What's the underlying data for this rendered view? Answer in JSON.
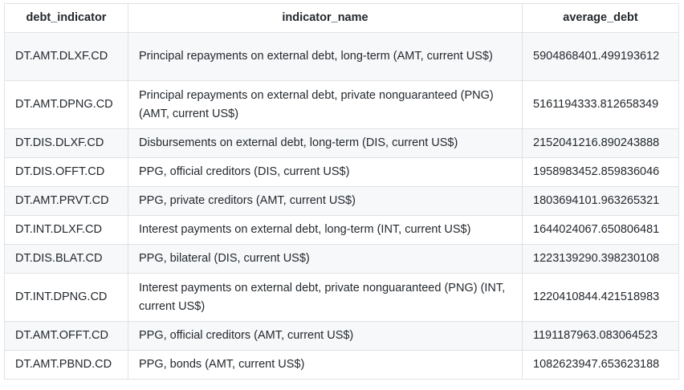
{
  "table": {
    "headers": [
      "debt_indicator",
      "indicator_name",
      "average_debt"
    ],
    "rows": [
      {
        "debt_indicator": "DT.AMT.DLXF.CD",
        "indicator_name": "Principal repayments on external debt, long-term (AMT, current US$)",
        "average_debt": "5904868401.499193612"
      },
      {
        "debt_indicator": "DT.AMT.DPNG.CD",
        "indicator_name": "Principal repayments on external debt, private nonguaranteed (PNG) (AMT, current US$)",
        "average_debt": "5161194333.812658349"
      },
      {
        "debt_indicator": "DT.DIS.DLXF.CD",
        "indicator_name": "Disbursements on external debt, long-term (DIS, current US$)",
        "average_debt": "2152041216.890243888"
      },
      {
        "debt_indicator": "DT.DIS.OFFT.CD",
        "indicator_name": "PPG, official creditors (DIS, current US$)",
        "average_debt": "1958983452.859836046"
      },
      {
        "debt_indicator": "DT.AMT.PRVT.CD",
        "indicator_name": "PPG, private creditors (AMT, current US$)",
        "average_debt": "1803694101.963265321"
      },
      {
        "debt_indicator": "DT.INT.DLXF.CD",
        "indicator_name": "Interest payments on external debt, long-term (INT, current US$)",
        "average_debt": "1644024067.650806481"
      },
      {
        "debt_indicator": "DT.DIS.BLAT.CD",
        "indicator_name": "PPG, bilateral (DIS, current US$)",
        "average_debt": "1223139290.398230108"
      },
      {
        "debt_indicator": "DT.INT.DPNG.CD",
        "indicator_name": "Interest payments on external debt, private nonguaranteed (PNG) (INT, current US$)",
        "average_debt": "1220410844.421518983"
      },
      {
        "debt_indicator": "DT.AMT.OFFT.CD",
        "indicator_name": "PPG, official creditors (AMT, current US$)",
        "average_debt": "1191187963.083064523"
      },
      {
        "debt_indicator": "DT.AMT.PBND.CD",
        "indicator_name": "PPG, bonds (AMT, current US$)",
        "average_debt": "1082623947.653623188"
      }
    ]
  }
}
